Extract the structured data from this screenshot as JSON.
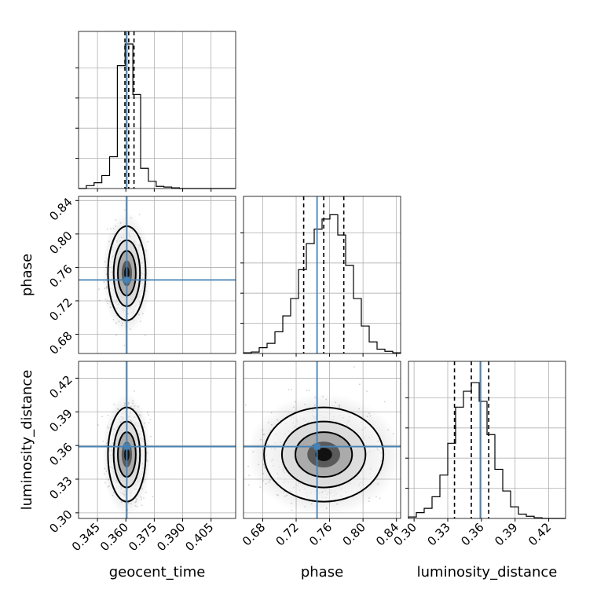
{
  "chart_data": {
    "type": "corner",
    "parameters": [
      "geocent_time",
      "phase",
      "luminosity_distance"
    ],
    "labels": {
      "x": [
        "geocent_time",
        "phase",
        "luminosity_distance"
      ],
      "y": [
        "phase",
        "luminosity_distance"
      ]
    },
    "truths": {
      "geocent_time": 0.3605,
      "phase": 0.745,
      "luminosity_distance": 0.359
    },
    "ranges": {
      "geocent_time": [
        0.335,
        0.418
      ],
      "phase": [
        0.657,
        0.845
      ],
      "luminosity_distance": [
        0.295,
        0.435
      ]
    },
    "ticks": {
      "geocent_time": [
        "0.345",
        "0.360",
        "0.375",
        "0.390",
        "0.405"
      ],
      "phase": [
        "0.68",
        "0.72",
        "0.76",
        "0.80",
        "0.84"
      ],
      "luminosity_distance": [
        "0.30",
        "0.33",
        "0.36",
        "0.39",
        "0.42"
      ]
    },
    "quantiles": {
      "geocent_time": [
        0.3595,
        0.3615,
        0.3643
      ],
      "phase": [
        0.729,
        0.753,
        0.777
      ],
      "luminosity_distance": [
        0.336,
        0.351,
        0.3665
      ]
    },
    "histograms": {
      "geocent_time": {
        "bins": [
          0.335,
          0.3391,
          0.3432,
          0.3473,
          0.3514,
          0.3555,
          0.3596,
          0.3637,
          0.3678,
          0.3719,
          0.376,
          0.3801,
          0.3842,
          0.3883,
          0.3924,
          0.3965,
          0.4006,
          0.4047,
          0.418
        ],
        "counts": [
          0,
          0.02,
          0.04,
          0.09,
          0.22,
          0.85,
          1.0,
          0.65,
          0.14,
          0.05,
          0.015,
          0.01,
          0.005,
          0,
          0,
          0,
          0,
          0
        ]
      },
      "phase": {
        "bins": [
          0.657,
          0.6664,
          0.6758,
          0.6852,
          0.6946,
          0.704,
          0.7134,
          0.7228,
          0.7322,
          0.7416,
          0.751,
          0.7604,
          0.7698,
          0.7792,
          0.7886,
          0.798,
          0.8074,
          0.8168,
          0.8262,
          0.8356,
          0.845
        ],
        "counts": [
          0.005,
          0.01,
          0.04,
          0.07,
          0.15,
          0.26,
          0.38,
          0.58,
          0.76,
          0.86,
          0.93,
          0.96,
          0.82,
          0.61,
          0.38,
          0.19,
          0.08,
          0.03,
          0.015,
          0.005
        ]
      },
      "luminosity_distance": {
        "bins": [
          0.295,
          0.302,
          0.309,
          0.316,
          0.323,
          0.33,
          0.337,
          0.344,
          0.351,
          0.358,
          0.365,
          0.372,
          0.379,
          0.386,
          0.393,
          0.4,
          0.407,
          0.414,
          0.421,
          0.435
        ],
        "counts": [
          0.01,
          0.04,
          0.07,
          0.15,
          0.3,
          0.52,
          0.77,
          0.88,
          0.94,
          0.81,
          0.58,
          0.34,
          0.19,
          0.08,
          0.03,
          0.015,
          0.005,
          0,
          0
        ]
      }
    },
    "density_center": {
      "geocent_time": 0.3605,
      "phase": 0.753,
      "luminosity_distance": 0.352
    },
    "grid": true
  }
}
